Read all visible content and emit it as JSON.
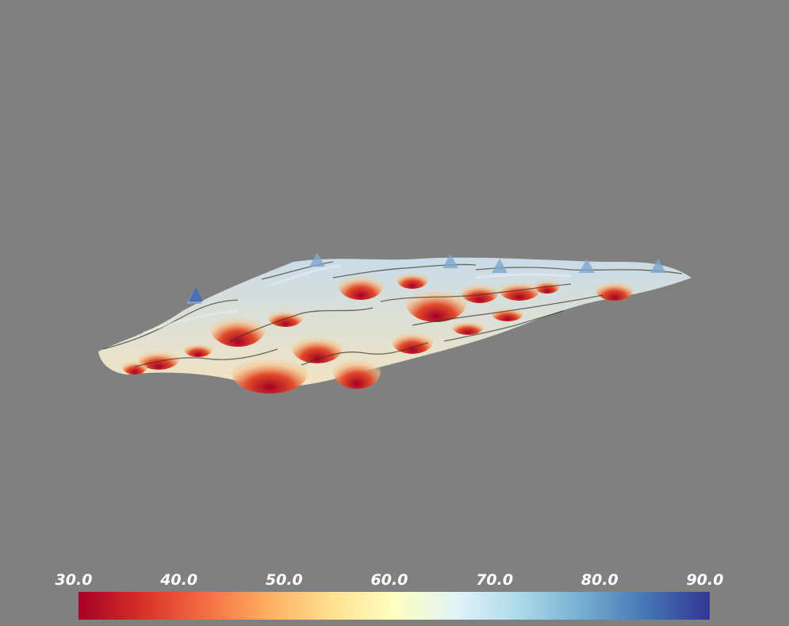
{
  "viewport": {
    "background": "#808080"
  },
  "scalar_bar": {
    "range": [
      30,
      90
    ],
    "colormap": [
      "#a50026",
      "#d73027",
      "#f46d43",
      "#fdae61",
      "#fee090",
      "#ffffbf",
      "#e0f3f8",
      "#abd9e9",
      "#74add1",
      "#4575b4",
      "#313695"
    ],
    "ticks": [
      "30.0",
      "40.0",
      "50.0",
      "60.0",
      "70.0",
      "80.0",
      "90.0"
    ]
  }
}
